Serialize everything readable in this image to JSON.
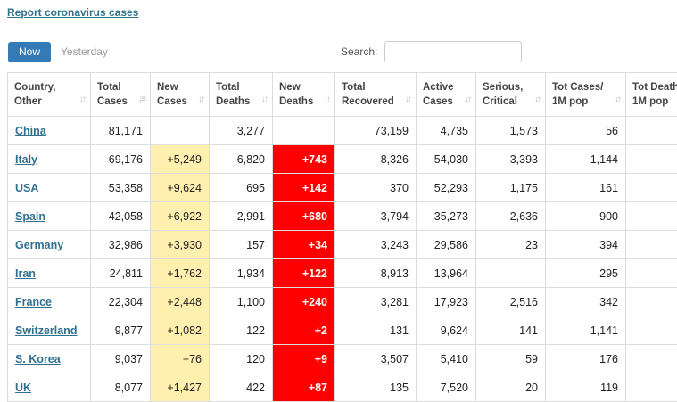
{
  "report_link": "Report coronavirus cases",
  "tabs": {
    "now": "Now",
    "yesterday": "Yesterday"
  },
  "search": {
    "label": "Search:",
    "value": "",
    "placeholder": ""
  },
  "colors": {
    "new_cases_bg": "#fff0b0",
    "new_deaths_bg": "#ff0000",
    "link": "#31708f",
    "button": "#337ab7"
  },
  "headers": [
    {
      "line1": "Country,",
      "line2": "Other",
      "sort_icon": "sort-icon"
    },
    {
      "line1": "Total",
      "line2": "Cases",
      "sort_icon": "sort-desc-icon"
    },
    {
      "line1": "New",
      "line2": "Cases",
      "sort_icon": "sort-icon"
    },
    {
      "line1": "Total",
      "line2": "Deaths",
      "sort_icon": "sort-icon"
    },
    {
      "line1": "New",
      "line2": "Deaths",
      "sort_icon": "sort-icon"
    },
    {
      "line1": "Total",
      "line2": "Recovered",
      "sort_icon": "sort-icon"
    },
    {
      "line1": "Active",
      "line2": "Cases",
      "sort_icon": "sort-icon"
    },
    {
      "line1": "Serious,",
      "line2": "Critical",
      "sort_icon": "sort-icon"
    },
    {
      "line1": "Tot Cases/",
      "line2": "1M pop",
      "sort_icon": "sort-icon"
    },
    {
      "line1": "Tot Deaths/",
      "line2": "1M pop",
      "sort_icon": "sort-icon"
    }
  ],
  "rows": [
    {
      "country": "China",
      "total_cases": "81,171",
      "new_cases": "",
      "total_deaths": "3,277",
      "new_deaths": "",
      "total_recovered": "73,159",
      "active_cases": "4,735",
      "serious": "1,573",
      "per_million": "56",
      "deaths_per_million": ""
    },
    {
      "country": "Italy",
      "total_cases": "69,176",
      "new_cases": "+5,249",
      "total_deaths": "6,820",
      "new_deaths": "+743",
      "total_recovered": "8,326",
      "active_cases": "54,030",
      "serious": "3,393",
      "per_million": "1,144",
      "deaths_per_million": ""
    },
    {
      "country": "USA",
      "total_cases": "53,358",
      "new_cases": "+9,624",
      "total_deaths": "695",
      "new_deaths": "+142",
      "total_recovered": "370",
      "active_cases": "52,293",
      "serious": "1,175",
      "per_million": "161",
      "deaths_per_million": ""
    },
    {
      "country": "Spain",
      "total_cases": "42,058",
      "new_cases": "+6,922",
      "total_deaths": "2,991",
      "new_deaths": "+680",
      "total_recovered": "3,794",
      "active_cases": "35,273",
      "serious": "2,636",
      "per_million": "900",
      "deaths_per_million": ""
    },
    {
      "country": "Germany",
      "total_cases": "32,986",
      "new_cases": "+3,930",
      "total_deaths": "157",
      "new_deaths": "+34",
      "total_recovered": "3,243",
      "active_cases": "29,586",
      "serious": "23",
      "per_million": "394",
      "deaths_per_million": ""
    },
    {
      "country": "Iran",
      "total_cases": "24,811",
      "new_cases": "+1,762",
      "total_deaths": "1,934",
      "new_deaths": "+122",
      "total_recovered": "8,913",
      "active_cases": "13,964",
      "serious": "",
      "per_million": "295",
      "deaths_per_million": ""
    },
    {
      "country": "France",
      "total_cases": "22,304",
      "new_cases": "+2,448",
      "total_deaths": "1,100",
      "new_deaths": "+240",
      "total_recovered": "3,281",
      "active_cases": "17,923",
      "serious": "2,516",
      "per_million": "342",
      "deaths_per_million": ""
    },
    {
      "country": "Switzerland",
      "total_cases": "9,877",
      "new_cases": "+1,082",
      "total_deaths": "122",
      "new_deaths": "+2",
      "total_recovered": "131",
      "active_cases": "9,624",
      "serious": "141",
      "per_million": "1,141",
      "deaths_per_million": ""
    },
    {
      "country": "S. Korea",
      "total_cases": "9,037",
      "new_cases": "+76",
      "total_deaths": "120",
      "new_deaths": "+9",
      "total_recovered": "3,507",
      "active_cases": "5,410",
      "serious": "59",
      "per_million": "176",
      "deaths_per_million": ""
    },
    {
      "country": "UK",
      "total_cases": "8,077",
      "new_cases": "+1,427",
      "total_deaths": "422",
      "new_deaths": "+87",
      "total_recovered": "135",
      "active_cases": "7,520",
      "serious": "20",
      "per_million": "119",
      "deaths_per_million": ""
    }
  ]
}
